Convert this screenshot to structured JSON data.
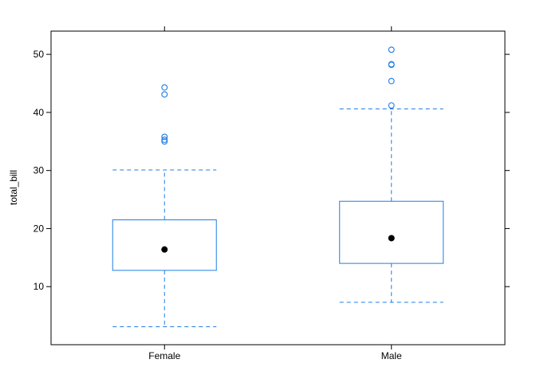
{
  "chart_data": {
    "type": "box",
    "ylabel": "total_bill",
    "categories": [
      "Female",
      "Male"
    ],
    "yticks": [
      10,
      20,
      30,
      40,
      50
    ],
    "ylim": [
      0,
      54
    ],
    "grid": false,
    "colors": {
      "box": "#1f7de6",
      "median": "#000000",
      "frame": "#000000"
    },
    "boxes": [
      {
        "category": "Female",
        "whisker_low": 3.1,
        "q1": 12.8,
        "median": 16.4,
        "q3": 21.5,
        "whisker_high": 30.1,
        "outliers": [
          35.0,
          35.3,
          35.8,
          43.1,
          44.3
        ]
      },
      {
        "category": "Male",
        "whisker_low": 7.3,
        "q1": 14.0,
        "median": 18.35,
        "q3": 24.7,
        "whisker_high": 40.6,
        "outliers": [
          41.2,
          45.4,
          48.2,
          48.3,
          50.8
        ]
      }
    ]
  }
}
